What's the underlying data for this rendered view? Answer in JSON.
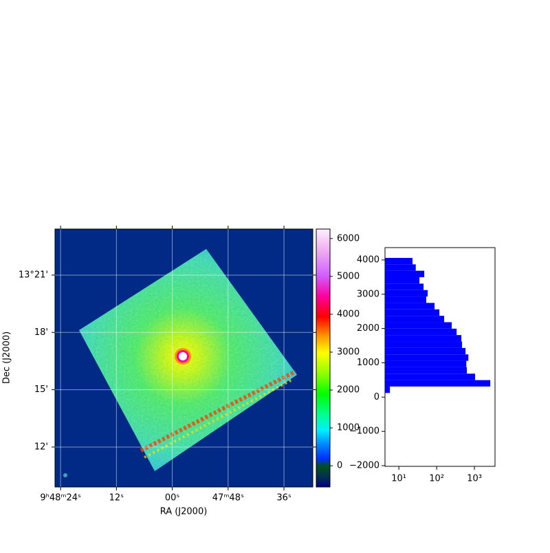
{
  "chart_data": [
    {
      "type": "image",
      "xlabel": "RA (J2000)",
      "ylabel": "Dec (J2000)",
      "xlim": [
        25.2,
        -30.2
      ],
      "ylim": [
        9.91,
        23.41
      ],
      "grid": true,
      "xticks": [
        {
          "value": 24,
          "label": "9ʰ48ᵐ24ˢ"
        },
        {
          "value": 12,
          "label": "12ˢ"
        },
        {
          "value": 0,
          "label": "00ˢ"
        },
        {
          "value": -12,
          "label": "47ᵐ48ˢ"
        },
        {
          "value": -24,
          "label": "36ˢ"
        }
      ],
      "yticks": [
        {
          "value": 21,
          "label": "13°21'"
        },
        {
          "value": 18,
          "label": "18'"
        },
        {
          "value": 15,
          "label": "15'"
        },
        {
          "value": 12,
          "label": "12'"
        }
      ],
      "colorbar": {
        "clim": [
          -560,
          6250
        ],
        "ticks": [
          0,
          1000,
          2000,
          3000,
          4000,
          5000,
          6000
        ]
      }
    },
    {
      "type": "histogram",
      "orientation": "horizontal",
      "xscale": "log",
      "color": "#0000ff",
      "bins": [
        120,
        308,
        495,
        683,
        871,
        1058,
        1246,
        1433,
        1621,
        1809,
        1996,
        2184,
        2371,
        2559,
        2747,
        2934,
        3122,
        3310,
        3497,
        3685,
        3872,
        4060
      ],
      "counts": [
        5.8,
        2620,
        1040,
        630,
        610,
        690,
        580,
        470,
        450,
        338,
        250,
        158,
        118,
        88,
        53,
        58,
        45,
        35,
        47,
        28,
        23
      ],
      "xlim": [
        4.3,
        3500
      ],
      "ylim": [
        -2020,
        4360
      ],
      "xticks": [
        {
          "value": 10,
          "label": "10¹"
        },
        {
          "value": 100,
          "label": "10²"
        },
        {
          "value": 1000,
          "label": "10³"
        }
      ],
      "yticks": [
        {
          "value": -2000,
          "label": "−2000"
        },
        {
          "value": -1000,
          "label": "−1000"
        },
        0,
        1000,
        2000,
        3000,
        4000
      ]
    }
  ]
}
